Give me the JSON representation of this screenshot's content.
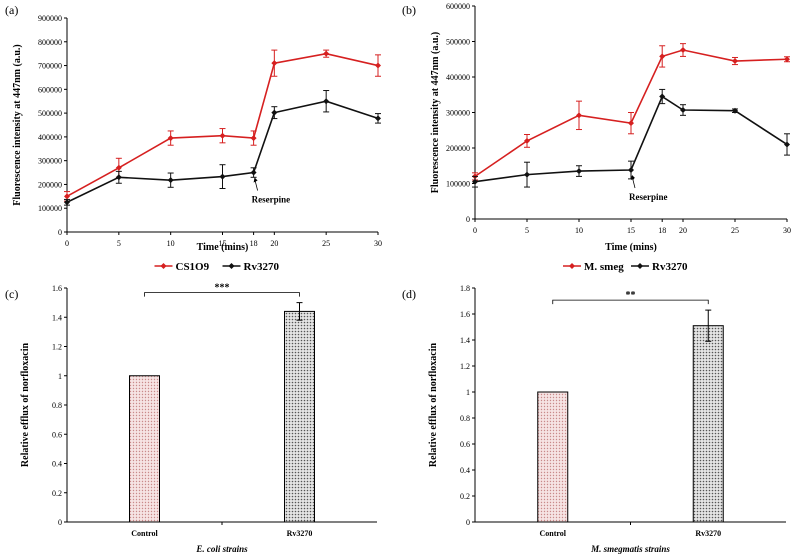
{
  "chart_data": [
    {
      "type": "line",
      "panel_label": "(a)",
      "title": "",
      "xlabel": "Time (mins)",
      "ylabel": "Fluorescence intensity  at 447nm (a.u.)",
      "x": [
        0,
        5,
        10,
        15,
        18,
        20,
        25,
        30
      ],
      "xlim": [
        0,
        30
      ],
      "x_ticks": [
        "0",
        "5",
        "10",
        "15",
        "18",
        "20",
        "25",
        "30"
      ],
      "ylim": [
        0,
        900000
      ],
      "y_ticks": [
        "0",
        "100000",
        "200000",
        "300000",
        "400000",
        "500000",
        "600000",
        "700000",
        "800000",
        "900000"
      ],
      "series": [
        {
          "name": "CS1O9",
          "color": "#d62020",
          "values": [
            150000,
            270000,
            395000,
            405000,
            395000,
            710000,
            750000,
            700000
          ],
          "errors": [
            20000,
            40000,
            30000,
            30000,
            30000,
            55000,
            15000,
            45000
          ]
        },
        {
          "name": "Rv3270",
          "color": "#111111",
          "values": [
            125000,
            230000,
            218000,
            233000,
            250000,
            502000,
            550000,
            478000
          ],
          "errors": [
            12000,
            25000,
            30000,
            50000,
            20000,
            25000,
            45000,
            20000
          ]
        }
      ],
      "annotation": {
        "text": "Reserpine",
        "x": 18,
        "y": 250000
      },
      "legend": "bottom-center"
    },
    {
      "type": "line",
      "panel_label": "(b)",
      "title": "",
      "xlabel": "Time (mins)",
      "ylabel": "Fluorescence intensity  at 447nm (a.u.)",
      "x": [
        0,
        5,
        10,
        15,
        18,
        20,
        25,
        30
      ],
      "xlim": [
        0,
        30
      ],
      "x_ticks": [
        "0",
        "5",
        "10",
        "15",
        "18",
        "20",
        "25",
        "30"
      ],
      "ylim": [
        0,
        600000
      ],
      "y_ticks": [
        "0",
        "100000",
        "200000",
        "300000",
        "400000",
        "500000",
        "600000"
      ],
      "series": [
        {
          "name": "M. smeg",
          "color": "#d62020",
          "values": [
            120000,
            220000,
            292000,
            270000,
            458000,
            476000,
            445000,
            450000
          ],
          "errors": [
            10000,
            18000,
            40000,
            30000,
            30000,
            18000,
            10000,
            7000
          ]
        },
        {
          "name": "Rv3270",
          "color": "#111111",
          "values": [
            105000,
            125000,
            135000,
            138000,
            345000,
            307000,
            305000,
            210000
          ],
          "errors": [
            15000,
            35000,
            15000,
            25000,
            20000,
            15000,
            5000,
            30000
          ]
        }
      ],
      "annotation": {
        "text": "Reserpine",
        "x": 15,
        "y": 138000
      },
      "legend": "bottom-center"
    },
    {
      "type": "bar",
      "panel_label": "(c)",
      "title": "",
      "xlabel": "E. coli strains",
      "ylabel": "Relative efflux of norfloxacin",
      "categories": [
        "Control",
        "Rv3270"
      ],
      "values": [
        1.0,
        1.44
      ],
      "errors": [
        0,
        0.06
      ],
      "ylim": [
        0,
        1.6
      ],
      "y_ticks": [
        "0",
        "0.2",
        "0.4",
        "0.6",
        "0.8",
        "1",
        "1.2",
        "1.4",
        "1.6"
      ],
      "significance": "***"
    },
    {
      "type": "bar",
      "panel_label": "(d)",
      "title": "",
      "xlabel": "M. smegmatis strains",
      "ylabel": "Relative efflux of norfloxacin",
      "categories": [
        "Control",
        "Rv3270"
      ],
      "values": [
        1.0,
        1.51
      ],
      "errors": [
        0,
        0.12
      ],
      "ylim": [
        0,
        1.8
      ],
      "y_ticks": [
        "0",
        "0.2",
        "0.4",
        "0.6",
        "0.8",
        "1",
        "1.2",
        "1.4",
        "1.6",
        "1.8"
      ],
      "significance": "**"
    }
  ]
}
